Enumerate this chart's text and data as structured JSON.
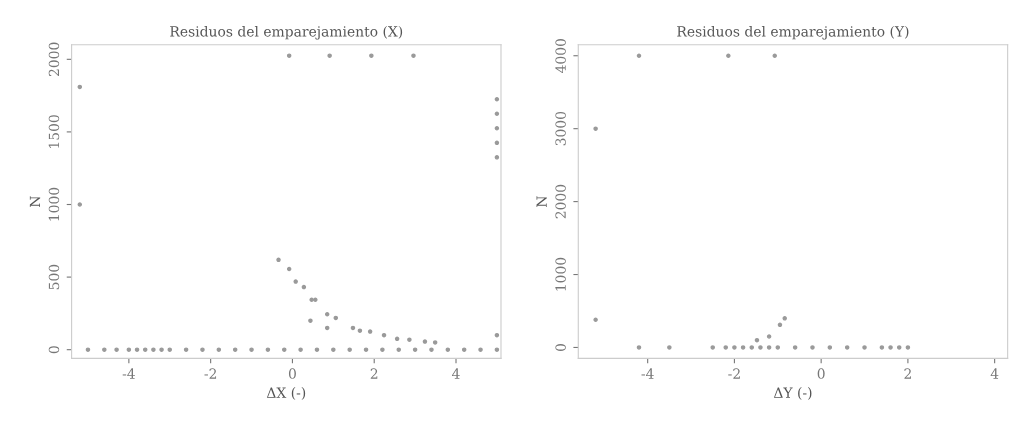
{
  "chart_data": [
    {
      "type": "scatter",
      "title": "Residuos del emparejamiento (X)",
      "xlabel": "ΔX (-)",
      "ylabel": "N",
      "marker": "circle",
      "grid": false,
      "series": [
        {
          "color": "#9a9a9a",
          "x": [
            -0.08,
            0.91,
            1.93,
            2.96,
            -5.2,
            -5.2,
            5.0,
            5.0,
            5.0,
            5.0,
            5.0,
            -0.34,
            -0.08,
            0.08,
            0.28,
            0.47,
            0.56,
            0.44,
            0.85,
            1.06,
            0.85,
            1.48,
            1.65,
            1.9,
            2.24,
            2.56,
            2.86,
            3.24,
            3.49,
            5.0,
            -5.0,
            -4.6,
            -4.3,
            -4.0,
            -3.8,
            -3.6,
            -3.4,
            -3.2,
            -3.0,
            -2.6,
            -2.2,
            -1.8,
            -1.4,
            -1.0,
            -0.6,
            -0.2,
            0.2,
            0.6,
            1.0,
            1.4,
            1.8,
            2.2,
            2.6,
            3.0,
            3.4,
            3.8,
            4.2,
            4.6,
            5.0
          ],
          "values": [
            2025,
            2025,
            2025,
            2025,
            1810,
            1000,
            1725,
            1625,
            1525,
            1425,
            1325,
            619,
            556,
            469,
            431,
            344,
            344,
            200,
            244,
            219,
            150,
            150,
            131,
            125,
            100,
            75,
            69,
            56,
            50,
            100,
            0,
            0,
            0,
            0,
            0,
            0,
            0,
            0,
            0,
            0,
            0,
            0,
            0,
            0,
            0,
            0,
            0,
            0,
            0,
            0,
            0,
            0,
            0,
            0,
            0,
            0,
            0,
            0,
            0
          ]
        }
      ],
      "xlim": [
        -5.4,
        5.1
      ],
      "ylim": [
        -60,
        2100
      ],
      "xticks": [
        -4,
        -2,
        0,
        2,
        4
      ],
      "yticks": [
        0,
        500,
        1000,
        1500,
        2000
      ]
    },
    {
      "type": "scatter",
      "title": "Residuos del emparejamiento (Y)",
      "xlabel": "ΔY (-)",
      "ylabel": "N",
      "marker": "circle",
      "grid": false,
      "series": [
        {
          "color": "#9a9a9a",
          "x": [
            -4.2,
            -2.14,
            -1.07,
            -5.2,
            -5.2,
            -0.84,
            -0.95,
            -1.2,
            -1.48,
            -4.2,
            -3.5,
            -2.5,
            -2.2,
            -2.0,
            -1.8,
            -1.6,
            -1.4,
            -1.2,
            -1.0,
            -0.6,
            -0.2,
            0.2,
            0.6,
            1.0,
            1.4,
            1.6,
            1.8,
            2.0
          ],
          "values": [
            4000,
            4000,
            4000,
            3000,
            380,
            400,
            310,
            150,
            100,
            0,
            0,
            0,
            0,
            0,
            0,
            0,
            0,
            0,
            0,
            0,
            0,
            0,
            0,
            0,
            0,
            0,
            0,
            0
          ]
        }
      ],
      "xlim": [
        -5.6,
        4.3
      ],
      "ylim": [
        -150,
        4150
      ],
      "xticks": [
        -4,
        -2,
        0,
        2,
        4
      ],
      "yticks": [
        0,
        1000,
        2000,
        3000,
        4000
      ]
    }
  ]
}
